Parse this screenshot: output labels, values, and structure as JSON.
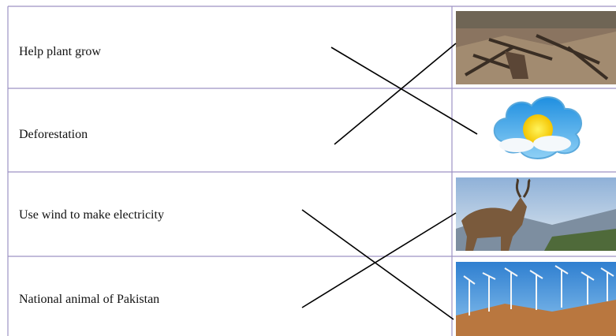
{
  "table": {
    "rows": [
      "Help plant grow",
      "Deforestation",
      "Use wind to make electricity",
      "National animal of Pakistan"
    ]
  }
}
